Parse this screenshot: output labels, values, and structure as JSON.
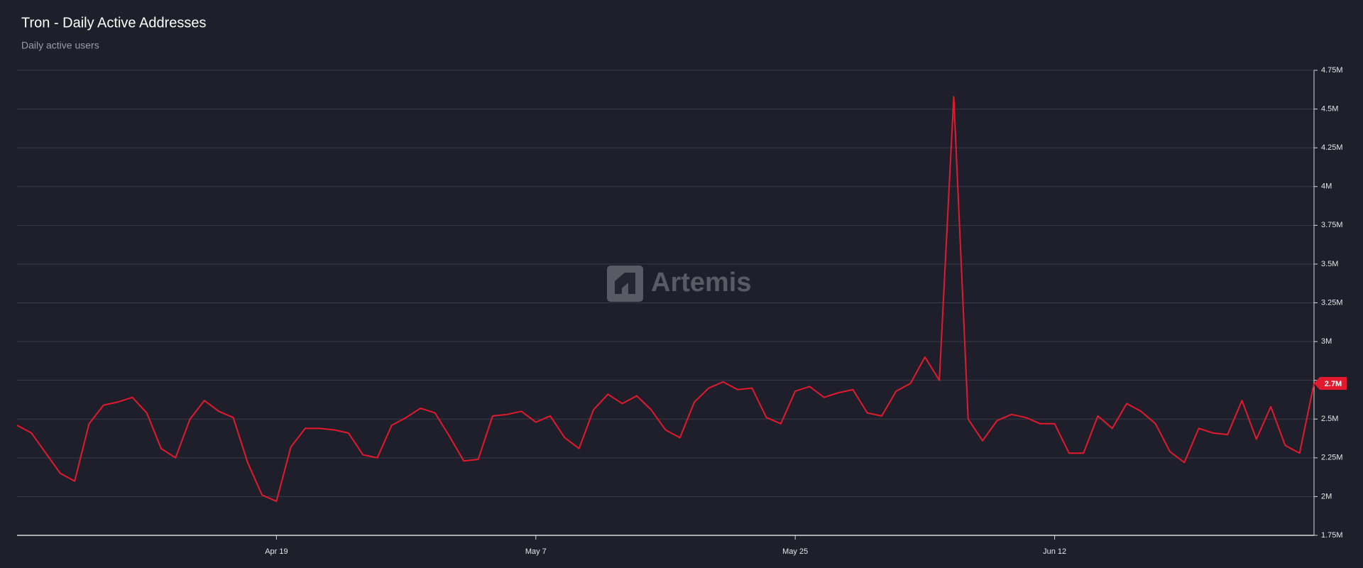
{
  "chart_data": {
    "type": "line",
    "title": "Tron - Daily Active Addresses",
    "subtitle": "Daily active users",
    "watermark": "Artemis",
    "color": "#e3192d",
    "grid": true,
    "categories": [
      null,
      null,
      null,
      null,
      null,
      null,
      null,
      null,
      null,
      null,
      null,
      null,
      null,
      null,
      null,
      null,
      null,
      null,
      "Apr 19",
      null,
      null,
      null,
      null,
      null,
      null,
      null,
      null,
      null,
      null,
      null,
      null,
      null,
      null,
      null,
      null,
      null,
      "May 7",
      null,
      null,
      null,
      null,
      null,
      null,
      null,
      null,
      null,
      null,
      null,
      null,
      null,
      null,
      null,
      null,
      null,
      "May 25",
      null,
      null,
      null,
      null,
      null,
      null,
      null,
      null,
      null,
      null,
      null,
      null,
      null,
      null,
      null,
      null,
      null,
      "Jun 12",
      null,
      null,
      null,
      null,
      null,
      null,
      null,
      null,
      null,
      null,
      null,
      null,
      null,
      null,
      null,
      null,
      null,
      null
    ],
    "values": [
      2.46,
      2.41,
      2.28,
      2.15,
      2.1,
      2.47,
      2.59,
      2.61,
      2.64,
      2.54,
      2.31,
      2.25,
      2.5,
      2.62,
      2.55,
      2.51,
      2.22,
      2.01,
      1.97,
      2.32,
      2.44,
      2.44,
      2.43,
      2.41,
      2.27,
      2.25,
      2.46,
      2.51,
      2.57,
      2.54,
      2.39,
      2.23,
      2.24,
      2.52,
      2.53,
      2.55,
      2.48,
      2.52,
      2.38,
      2.31,
      2.56,
      2.66,
      2.6,
      2.65,
      2.56,
      2.43,
      2.38,
      2.61,
      2.7,
      2.74,
      2.69,
      2.7,
      2.51,
      2.47,
      2.68,
      2.71,
      2.64,
      2.67,
      2.69,
      2.54,
      2.52,
      2.68,
      2.73,
      2.9,
      2.75,
      4.58,
      2.5,
      2.36,
      2.49,
      2.53,
      2.51,
      2.47,
      2.47,
      2.28,
      2.28,
      2.52,
      2.44,
      2.6,
      2.55,
      2.47,
      2.29,
      2.22,
      2.44,
      2.41,
      2.4,
      2.62,
      2.37,
      2.58,
      2.33,
      2.28,
      2.73
    ],
    "value_labels": [
      null,
      null,
      null,
      null,
      null,
      null,
      null,
      null,
      null,
      null,
      null,
      null,
      null,
      null,
      null,
      null,
      null,
      null,
      null,
      null,
      null,
      null,
      null,
      null,
      null,
      null,
      null,
      null,
      null,
      null,
      null,
      null,
      null,
      null,
      null,
      null,
      null,
      null,
      null,
      null,
      null,
      null,
      null,
      null,
      null,
      null,
      null,
      null,
      null,
      null,
      null,
      null,
      null,
      null,
      null,
      null,
      null,
      null,
      null,
      null,
      null,
      null,
      null,
      null,
      null,
      null,
      null,
      null,
      null,
      null,
      null,
      null,
      null,
      null,
      null,
      null,
      null,
      null,
      null,
      null,
      null,
      null,
      null,
      null,
      null,
      null,
      null,
      null,
      null,
      null,
      "2.7M"
    ],
    "ylim": [
      1.75,
      4.75
    ],
    "yticks": [
      {
        "value": 1.75,
        "label": "1.75M"
      },
      {
        "value": 2,
        "label": "2M"
      },
      {
        "value": 2.25,
        "label": "2.25M"
      },
      {
        "value": 2.5,
        "label": "2.5M"
      },
      {
        "value": 2.75,
        "label": "2.75M"
      },
      {
        "value": 3,
        "label": "3M"
      },
      {
        "value": 3.25,
        "label": "3.25M"
      },
      {
        "value": 3.5,
        "label": "3.5M"
      },
      {
        "value": 3.75,
        "label": "3.75M"
      },
      {
        "value": 4,
        "label": "4M"
      },
      {
        "value": 4.25,
        "label": "4.25M"
      },
      {
        "value": 4.5,
        "label": "4.5M"
      },
      {
        "value": 4.75,
        "label": "4.75M"
      }
    ]
  }
}
